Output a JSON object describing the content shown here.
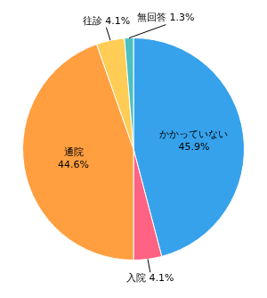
{
  "chart_data": {
    "type": "pie",
    "categories": [
      "かかっていない\n45.9%",
      "入院 4.1%",
      "通院\n44.6%",
      "往診 4.1%",
      "無回答 1.3%"
    ],
    "values": [
      45.9,
      4.1,
      44.6,
      4.1,
      1.3
    ]
  }
}
